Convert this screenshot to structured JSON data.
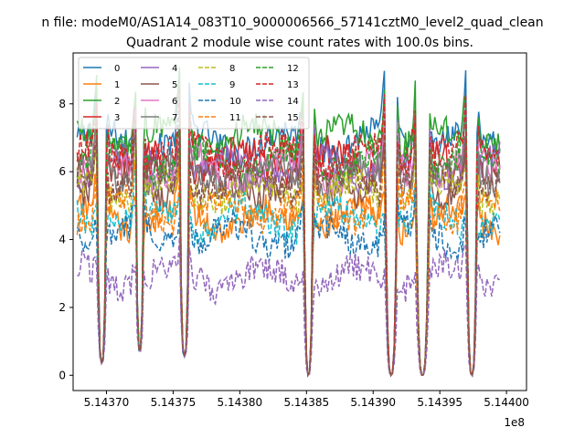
{
  "suptitle": "n file: modeM0/AS1A14_083T10_9000006566_57141cztM0_level2_quad_clean",
  "chart_data": {
    "type": "line",
    "title": "Quadrant 2 module wise count rates with 100.0s bins.",
    "xlabel": "",
    "ylabel": "",
    "x_offset_label": "1e8",
    "xlim": [
      5.143675,
      5.144015
    ],
    "ylim": [
      -0.45,
      9.5
    ],
    "x_ticks": [
      5.1437,
      5.14375,
      5.1438,
      5.14385,
      5.1439,
      5.14395,
      5.144
    ],
    "x_tick_labels": [
      "5.14370",
      "5.14375",
      "5.14380",
      "5.14385",
      "5.14390",
      "5.14395",
      "5.14400"
    ],
    "y_ticks": [
      0,
      2,
      4,
      6,
      8
    ],
    "y_tick_labels": [
      "0",
      "2",
      "4",
      "6",
      "8"
    ],
    "x_range": [
      5.143678,
      5.143995
    ],
    "gap_intervals": [
      [
        5.143693,
        5.1437
      ],
      [
        5.143722,
        5.143728
      ],
      [
        5.143755,
        5.143762
      ],
      [
        5.143848,
        5.143855
      ],
      [
        5.143909,
        5.143918
      ],
      [
        5.143932,
        5.143942
      ],
      [
        5.14397,
        5.143978
      ]
    ],
    "gap_min_values": [
      0.35,
      0.7,
      0.55,
      0.0,
      0.0,
      0.0,
      0.0
    ],
    "legend_position": "upper-left",
    "legend_columns": 4,
    "series": [
      {
        "name": "0",
        "color": "#1f77b4",
        "dashed": false,
        "level": 6.9
      },
      {
        "name": "1",
        "color": "#ff7f0e",
        "dashed": false,
        "level": 4.6
      },
      {
        "name": "2",
        "color": "#2ca02c",
        "dashed": false,
        "level": 7.0
      },
      {
        "name": "3",
        "color": "#d62728",
        "dashed": false,
        "level": 6.3
      },
      {
        "name": "4",
        "color": "#9467bd",
        "dashed": false,
        "level": 6.1
      },
      {
        "name": "5",
        "color": "#8c564b",
        "dashed": false,
        "level": 5.6
      },
      {
        "name": "6",
        "color": "#e377c2",
        "dashed": false,
        "level": 6.1
      },
      {
        "name": "7",
        "color": "#7f7f7f",
        "dashed": false,
        "level": 5.9
      },
      {
        "name": "8",
        "color": "#bcbd22",
        "dashed": true,
        "level": 5.4
      },
      {
        "name": "9",
        "color": "#17becf",
        "dashed": true,
        "level": 4.6
      },
      {
        "name": "10",
        "color": "#1f77b4",
        "dashed": true,
        "level": 4.1
      },
      {
        "name": "11",
        "color": "#ff7f0e",
        "dashed": true,
        "level": 4.9
      },
      {
        "name": "12",
        "color": "#2ca02c",
        "dashed": true,
        "level": 6.4
      },
      {
        "name": "13",
        "color": "#d62728",
        "dashed": true,
        "level": 6.5
      },
      {
        "name": "14",
        "color": "#9467bd",
        "dashed": true,
        "level": 2.9
      },
      {
        "name": "15",
        "color": "#8c564b",
        "dashed": true,
        "level": 5.7
      }
    ]
  }
}
